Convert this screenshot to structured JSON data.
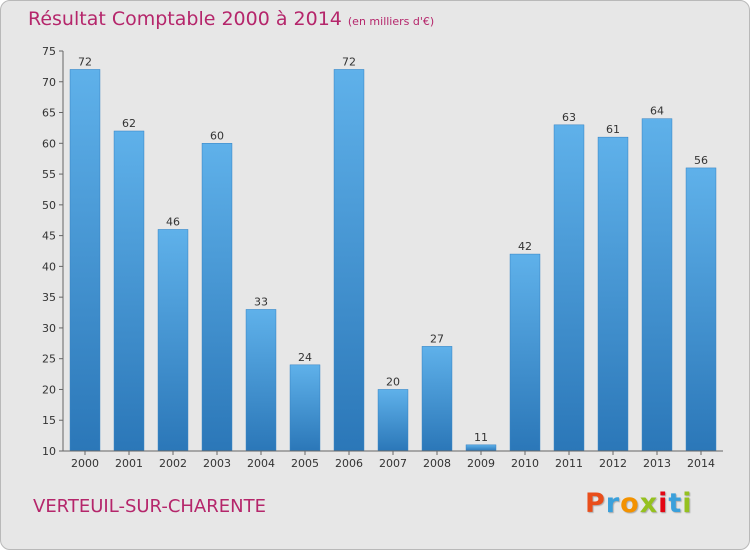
{
  "header": {
    "title": "Résultat Comptable 2000 à 2014",
    "subtitle": "(en milliers d'€)"
  },
  "footer": {
    "commune": "VERTEUIL-SUR-CHARENTE",
    "logo_letters": [
      "P",
      "r",
      "o",
      "x",
      "i",
      "t",
      "i"
    ],
    "logo_colors": [
      "#e94e1b",
      "#3aa0db",
      "#f39200",
      "#95c11f",
      "#e30613",
      "#3aa0db",
      "#95c11f"
    ]
  },
  "chart_data": {
    "type": "bar",
    "title": "Résultat Comptable 2000 à 2014",
    "subtitle": "(en milliers d'€)",
    "categories": [
      "2000",
      "2001",
      "2002",
      "2003",
      "2004",
      "2005",
      "2006",
      "2007",
      "2008",
      "2009",
      "2010",
      "2011",
      "2012",
      "2013",
      "2014"
    ],
    "values": [
      72,
      62,
      46,
      60,
      33,
      24,
      72,
      20,
      27,
      11,
      42,
      63,
      61,
      64,
      56
    ],
    "data_labels": [
      "72",
      "62",
      "46",
      "60",
      "33",
      "24",
      "72",
      "20",
      "27",
      "11",
      "42",
      "63",
      "61",
      "64",
      "56"
    ],
    "ylim": [
      10,
      75
    ],
    "yticks": [
      10,
      15,
      20,
      25,
      30,
      35,
      40,
      45,
      50,
      55,
      60,
      65,
      70,
      75
    ],
    "ytick_labels": [
      "10",
      "15",
      "20",
      "25",
      "30",
      "35",
      "40",
      "45",
      "50",
      "55",
      "60",
      "65",
      "70",
      "75"
    ],
    "grid": false,
    "bar_color": "#3d8fd4"
  }
}
